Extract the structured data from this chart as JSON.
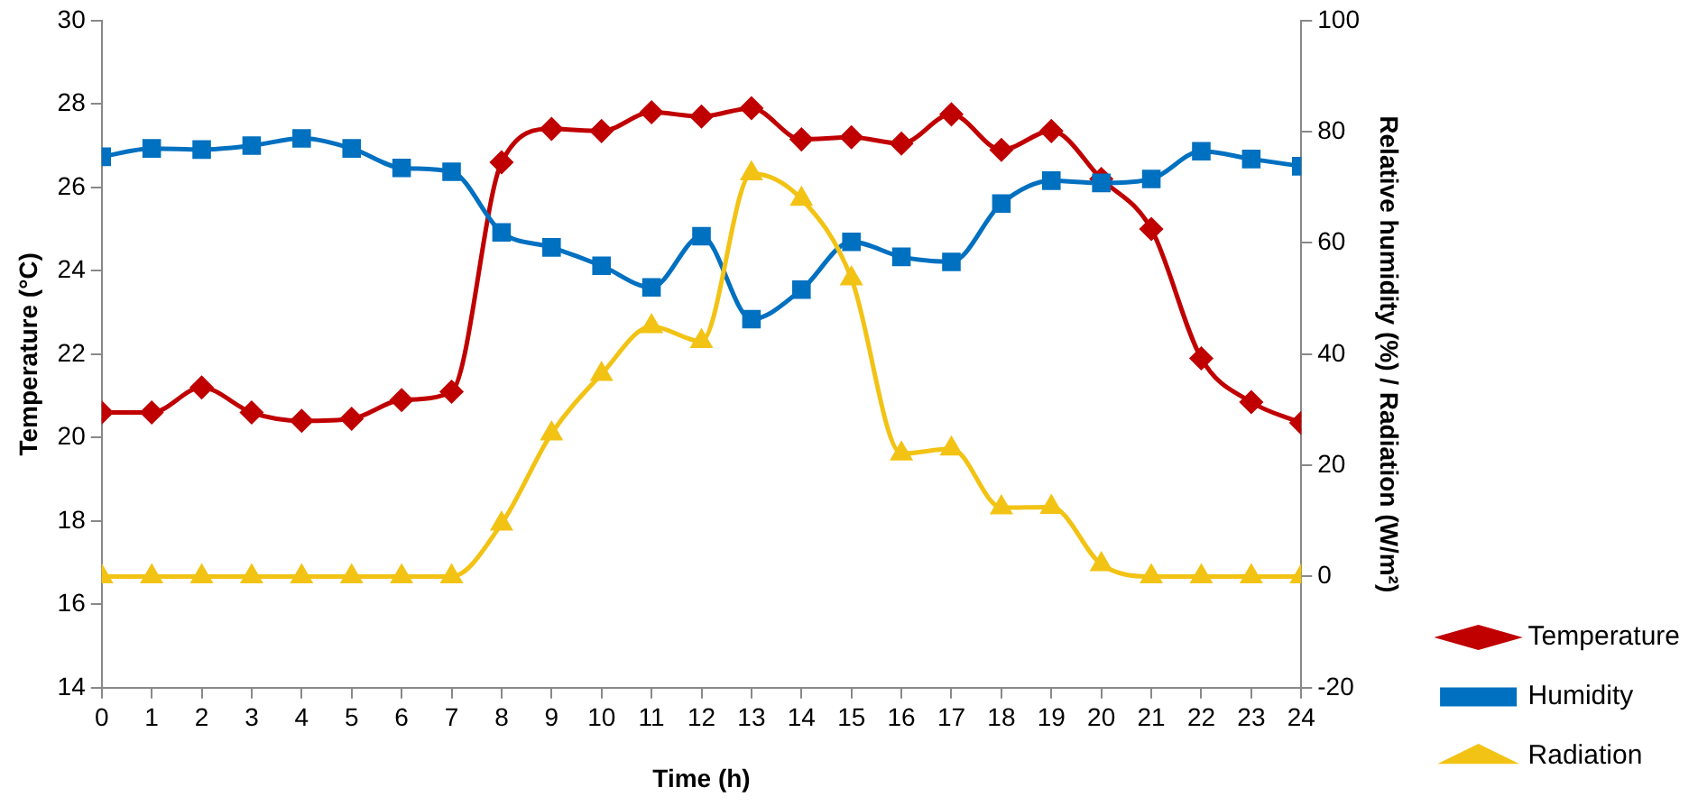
{
  "chart_data": {
    "type": "line",
    "xlabel": "Time (h)",
    "ylabel": "Temperature (°C)",
    "y2label": "Relative humidity (%) / Radiation (W/m²)",
    "x": [
      0,
      1,
      2,
      3,
      4,
      5,
      6,
      7,
      8,
      9,
      10,
      11,
      12,
      13,
      14,
      15,
      16,
      17,
      18,
      19,
      20,
      21,
      22,
      23,
      24
    ],
    "xlim": [
      0,
      24
    ],
    "xticks": [
      0,
      1,
      2,
      3,
      4,
      5,
      6,
      7,
      8,
      9,
      10,
      11,
      12,
      13,
      14,
      15,
      16,
      17,
      18,
      19,
      20,
      21,
      22,
      23,
      24
    ],
    "ylim": [
      14,
      30
    ],
    "yticks": [
      14,
      16,
      18,
      20,
      22,
      24,
      26,
      28,
      30
    ],
    "y2lim": [
      -20,
      100
    ],
    "y2ticks": [
      -20,
      0,
      20,
      40,
      60,
      80,
      100
    ],
    "grid": false,
    "legend": "right",
    "line_style": "solid",
    "series": [
      {
        "name": "Temperature",
        "color": "#c00000",
        "marker": "diamond",
        "values": [
          20.6,
          20.6,
          21.2,
          20.6,
          20.4,
          20.45,
          20.9,
          21.1,
          26.6,
          27.4,
          27.35,
          27.8,
          27.7,
          27.9,
          27.15,
          27.2,
          27.05,
          27.75,
          26.9,
          27.35,
          26.2,
          25.0,
          21.9,
          20.85,
          20.35
        ]
      },
      {
        "name": "Humidity",
        "color": "#0070c0",
        "marker": "square",
        "axis": "y2",
        "values": [
          75.5,
          77,
          76.8,
          77.5,
          78.8,
          77,
          73.5,
          72.8,
          61.9,
          59.2,
          55.9,
          52,
          61.2,
          46.3,
          51.6,
          60.2,
          57.5,
          56.6,
          67.1,
          71.2,
          70.8,
          71.5,
          76.5,
          75.1,
          73.8
        ]
      },
      {
        "name": "Radiation",
        "color": "#f2c314",
        "marker": "triangle",
        "axis": "y2",
        "values": [
          0,
          0,
          0,
          0,
          0,
          0,
          0,
          0,
          9.5,
          25.7,
          36.4,
          45,
          42.3,
          72.5,
          67.9,
          53.6,
          22.1,
          23,
          12.4,
          12.5,
          2.2,
          0,
          0,
          0,
          0
        ]
      }
    ]
  }
}
